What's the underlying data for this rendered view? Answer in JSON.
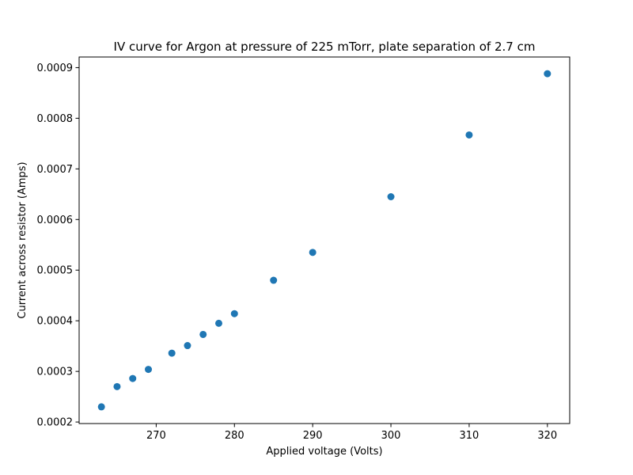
{
  "chart_data": {
    "type": "scatter",
    "title": "IV curve for Argon at pressure of 225 mTorr, plate separation of 2.7 cm",
    "xlabel": "Applied voltage (Volts)",
    "ylabel": "Current across resistor (Amps)",
    "xlim": [
      260.15,
      322.85
    ],
    "ylim": [
      0.000197,
      0.000921
    ],
    "xticks": [
      270,
      280,
      290,
      300,
      310,
      320
    ],
    "yticks": [
      0.0002,
      0.0003,
      0.0004,
      0.0005,
      0.0006,
      0.0007,
      0.0008,
      0.0009
    ],
    "xtick_labels": [
      "270",
      "280",
      "290",
      "300",
      "310",
      "320"
    ],
    "ytick_labels": [
      "0.0002",
      "0.0003",
      "0.0004",
      "0.0005",
      "0.0006",
      "0.0007",
      "0.0008",
      "0.0009"
    ],
    "grid": false,
    "marker_color": "#1f77b4",
    "points": [
      {
        "x": 263,
        "y": 0.00023
      },
      {
        "x": 265,
        "y": 0.00027
      },
      {
        "x": 267,
        "y": 0.000286
      },
      {
        "x": 269,
        "y": 0.000304
      },
      {
        "x": 272,
        "y": 0.000336
      },
      {
        "x": 274,
        "y": 0.000351
      },
      {
        "x": 276,
        "y": 0.000373
      },
      {
        "x": 278,
        "y": 0.000395
      },
      {
        "x": 280,
        "y": 0.000414
      },
      {
        "x": 285,
        "y": 0.00048
      },
      {
        "x": 290,
        "y": 0.000535
      },
      {
        "x": 300,
        "y": 0.000645
      },
      {
        "x": 310,
        "y": 0.000767
      },
      {
        "x": 320,
        "y": 0.000888
      }
    ]
  }
}
